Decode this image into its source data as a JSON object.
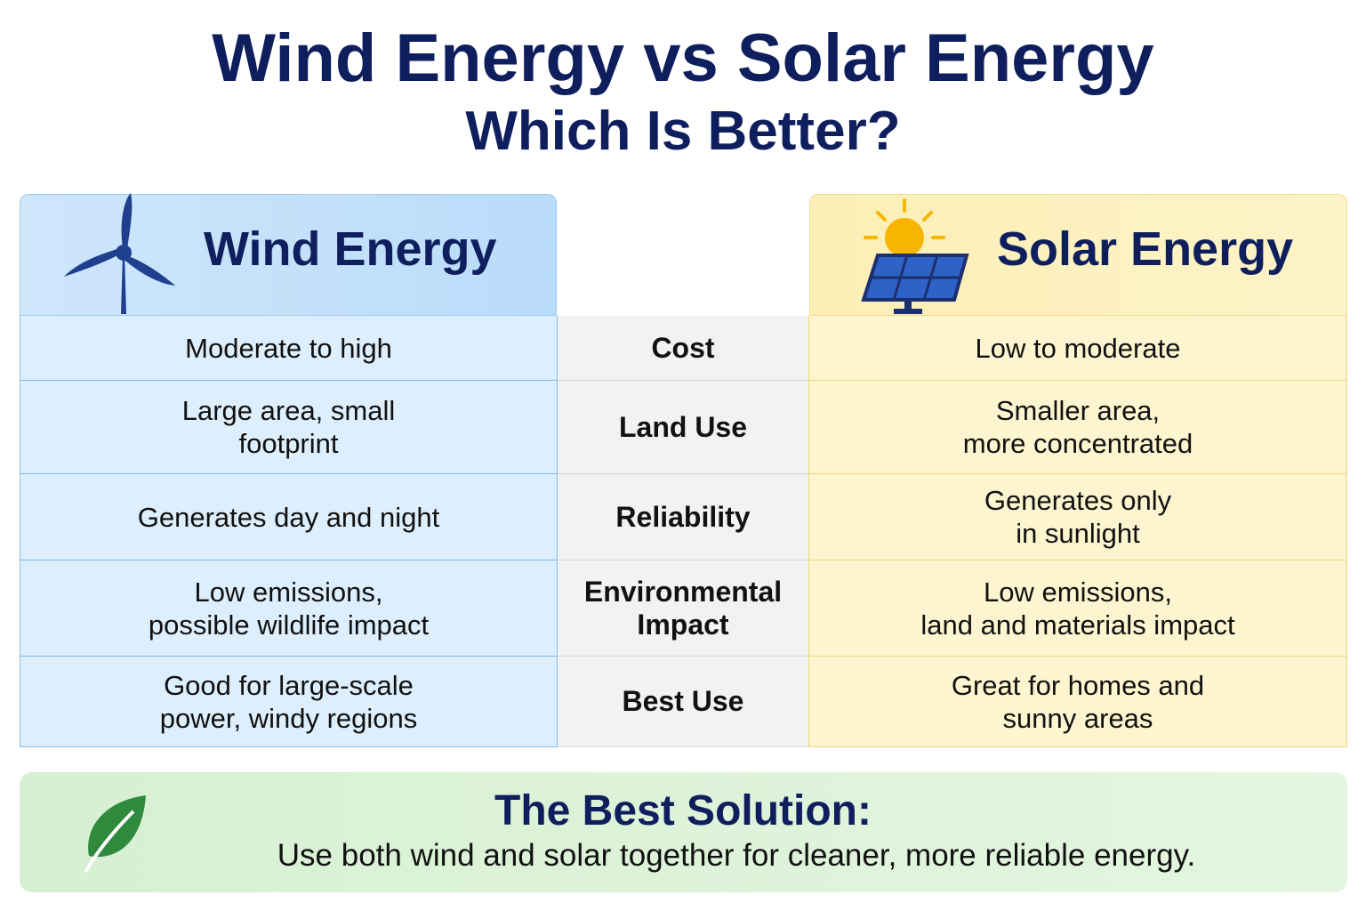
{
  "header": {
    "title": "Wind Energy vs Solar Energy",
    "subtitle": "Which Is Better?"
  },
  "wind": {
    "heading": "Wind Energy"
  },
  "solar": {
    "heading": "Solar Energy"
  },
  "rows": [
    {
      "criterion": "Cost",
      "wind": "Moderate to high",
      "solar": "Low to moderate"
    },
    {
      "criterion": "Land Use",
      "wind": "Large area, small\nfootprint",
      "solar": "Smaller area,\nmore concentrated"
    },
    {
      "criterion": "Reliability",
      "wind": "Generates day and night",
      "solar": "Generates only\nin sunlight"
    },
    {
      "criterion": "Environmental\nImpact",
      "wind": "Low emissions,\npossible wildlife impact",
      "solar": "Low emissions,\nland and materials impact"
    },
    {
      "criterion": "Best Use",
      "wind": "Good for large-scale\npower, windy regions",
      "solar": "Great for homes and\nsunny areas"
    }
  ],
  "summary": {
    "title": "The Best Solution:",
    "text": "Use both wind and solar together for cleaner, more reliable energy."
  }
}
